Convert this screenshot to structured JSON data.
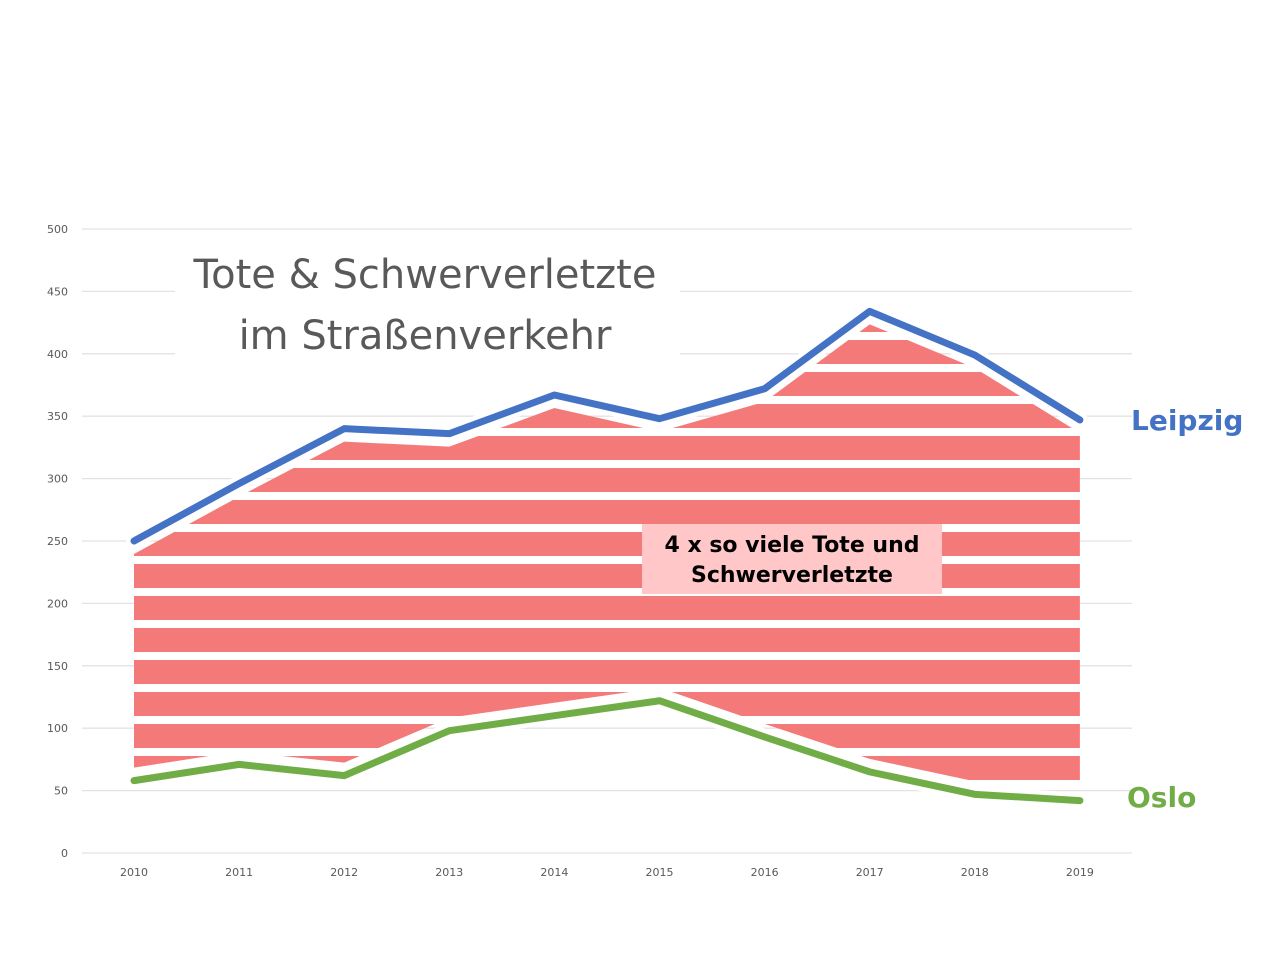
{
  "chart_data": {
    "type": "line",
    "title": [
      "Tote & Schwerverletzte",
      "im Straßenverkehr"
    ],
    "categories": [
      "2010",
      "2011",
      "2012",
      "2013",
      "2014",
      "2015",
      "2016",
      "2017",
      "2018",
      "2019"
    ],
    "ylim": [
      0,
      500
    ],
    "yticks": [
      0,
      50,
      100,
      150,
      200,
      250,
      300,
      350,
      400,
      450,
      500
    ],
    "grid": true,
    "series": [
      {
        "name": "Leipzig",
        "color": "#4472c4",
        "values": [
          250,
          296,
          340,
          336,
          367,
          348,
          372,
          434,
          399,
          347
        ]
      },
      {
        "name": "Oslo",
        "color": "#70ad47",
        "values": [
          58,
          71,
          62,
          98,
          110,
          122,
          93,
          65,
          47,
          42
        ]
      }
    ],
    "fill_between_color": "#f47a7a",
    "annotation": [
      "4 x so viele Tote und",
      "Schwerverletzte"
    ],
    "annotation_bg": "#ffc7c7"
  }
}
